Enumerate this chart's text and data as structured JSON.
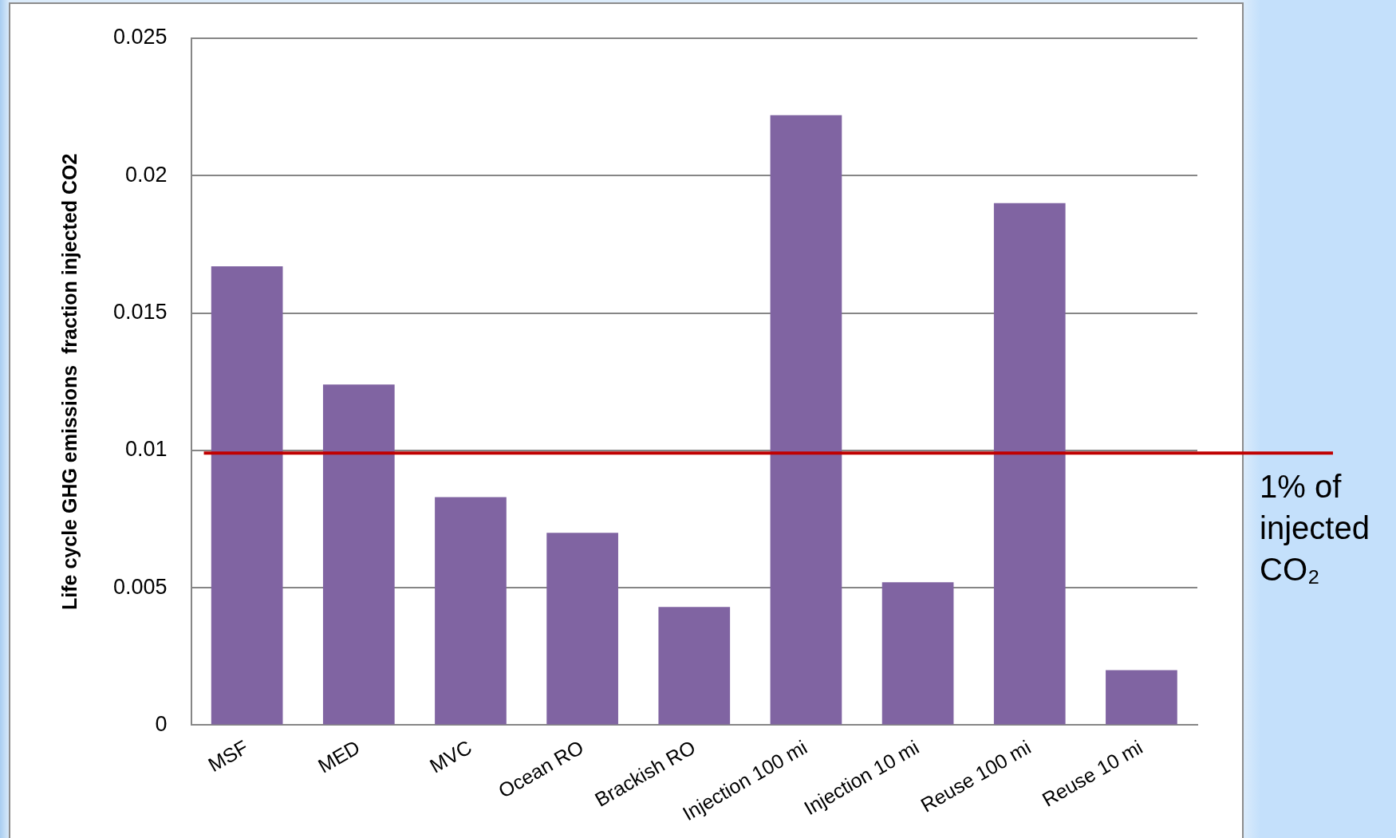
{
  "chart_data": {
    "type": "bar",
    "ylabel": "Life cycle GHG emissions  fraction injected CO2",
    "categories": [
      "MSF",
      "MED",
      "MVC",
      "Ocean RO",
      "Brackish RO",
      "Injection 100 mi",
      "Injection 10 mi",
      "Reuse 100 mi",
      "Reuse 10 mi"
    ],
    "values": [
      0.0167,
      0.0124,
      0.0083,
      0.007,
      0.0043,
      0.0222,
      0.0052,
      0.019,
      0.002
    ],
    "color": "#8064a2",
    "ylim": [
      0,
      0.025
    ],
    "yticks": [
      0,
      0.005,
      0.01,
      0.015,
      0.02,
      0.025
    ],
    "grid": "y",
    "ref_lines": [
      {
        "axis": "y",
        "value": 0.0099,
        "label": "1% of injected CO₂",
        "color": "#c00000"
      }
    ]
  }
}
